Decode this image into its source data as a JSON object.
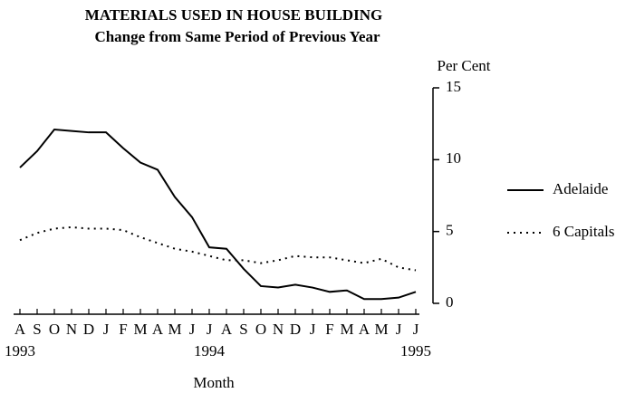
{
  "chart_data": {
    "type": "line",
    "title": "MATERIALS USED IN HOUSE BUILDING",
    "subtitle": "Change from Same Period of Previous Year",
    "y_label": "Per Cent",
    "x_label": "Month",
    "categories": [
      "A",
      "S",
      "O",
      "N",
      "D",
      "J",
      "F",
      "M",
      "A",
      "M",
      "J",
      "J",
      "A",
      "S",
      "O",
      "N",
      "D",
      "J",
      "F",
      "M",
      "A",
      "M",
      "J",
      "J"
    ],
    "year_labels": [
      "1993",
      null,
      null,
      null,
      null,
      null,
      null,
      null,
      null,
      null,
      null,
      "1994",
      null,
      null,
      null,
      null,
      null,
      null,
      null,
      null,
      null,
      null,
      null,
      "1995"
    ],
    "series": [
      {
        "name": "Adelaide",
        "color": "#000000",
        "dash": "solid",
        "values": [
          9.45,
          10.6,
          12.1,
          12.0,
          11.9,
          11.9,
          10.8,
          9.8,
          9.3,
          7.4,
          6.0,
          3.9,
          3.8,
          2.4,
          1.2,
          1.1,
          1.3,
          1.1,
          0.8,
          0.9,
          0.3,
          0.3,
          0.4,
          0.8
        ]
      },
      {
        "name": "6 Capitals",
        "color": "#000000",
        "dash": "dotted",
        "values": [
          4.4,
          4.9,
          5.2,
          5.3,
          5.2,
          5.2,
          5.1,
          4.6,
          4.2,
          3.8,
          3.6,
          3.3,
          3.0,
          3.0,
          2.8,
          3.0,
          3.3,
          3.2,
          3.2,
          3.0,
          2.8,
          3.1,
          2.5,
          2.3
        ]
      }
    ],
    "ylim": [
      0,
      15
    ],
    "yticks": [
      0,
      5,
      10,
      15
    ],
    "y_axis_side": "right",
    "grid": false,
    "legend": "right"
  }
}
